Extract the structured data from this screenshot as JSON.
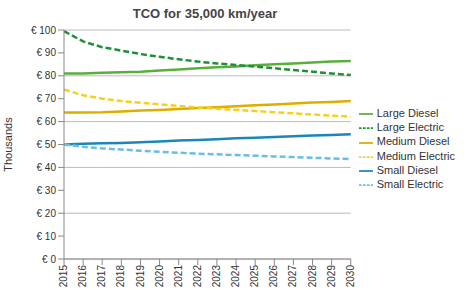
{
  "chart_data": {
    "type": "line",
    "title": "TCO for 35,000 km/year",
    "y_label": "Thousands",
    "categories": [
      "2015",
      "2016",
      "2017",
      "2018",
      "2019",
      "2020",
      "2021",
      "2022",
      "2023",
      "2024",
      "2025",
      "2026",
      "2027",
      "2028",
      "2029",
      "2030"
    ],
    "series": [
      {
        "name": "Small Diesel",
        "color": "#1b86b8",
        "line_style": "solid",
        "values": [
          50,
          50.3,
          50.5,
          50.7,
          51,
          51.3,
          51.7,
          52,
          52.3,
          52.7,
          53,
          53.3,
          53.6,
          53.9,
          54.2,
          54.5
        ]
      },
      {
        "name": "Small Electric",
        "color": "#6bbde3",
        "line_style": "dashed",
        "values": [
          50,
          49,
          48.3,
          47.8,
          47.3,
          46.8,
          46.4,
          46,
          45.7,
          45.4,
          45.1,
          44.8,
          44.5,
          44.2,
          43.9,
          43.6
        ]
      },
      {
        "name": "Medium Diesel",
        "color": "#dcae00",
        "line_style": "solid",
        "values": [
          64,
          64,
          64.1,
          64.4,
          64.8,
          65.1,
          65.5,
          65.9,
          66.3,
          66.7,
          67.1,
          67.5,
          67.9,
          68.3,
          68.6,
          69
        ]
      },
      {
        "name": "Medium Electric",
        "color": "#f5d020",
        "line_style": "dashed",
        "values": [
          74,
          71.5,
          70,
          69,
          68.2,
          67.5,
          66.8,
          66.2,
          65.6,
          65.1,
          64.6,
          64.1,
          63.6,
          63.1,
          62.6,
          62.2
        ]
      },
      {
        "name": "Large Diesel",
        "color": "#5aae3c",
        "line_style": "solid",
        "values": [
          81,
          81,
          81.3,
          81.5,
          81.8,
          82.3,
          82.8,
          83.3,
          83.7,
          84.1,
          84.6,
          85,
          85.4,
          85.8,
          86.2,
          86.5
        ]
      },
      {
        "name": "Large Electric",
        "color": "#1f8f3a",
        "line_style": "dashed",
        "values": [
          99.5,
          95,
          92.5,
          91,
          89.5,
          88.3,
          87.2,
          86.2,
          85.4,
          84.7,
          84,
          83.3,
          82.5,
          81.8,
          81,
          80.3
        ]
      }
    ],
    "ylim": [
      0,
      100
    ],
    "yticks": [
      {
        "value": 0,
        "label": "€ 0"
      },
      {
        "value": 10,
        "label": "€ 10"
      },
      {
        "value": 20,
        "label": "€ 20"
      },
      {
        "value": 30,
        "label": "€ 30"
      },
      {
        "value": 40,
        "label": "€ 40"
      },
      {
        "value": 50,
        "label": "€ 50"
      },
      {
        "value": 60,
        "label": "€ 60"
      },
      {
        "value": 70,
        "label": "€ 70"
      },
      {
        "value": 80,
        "label": "€ 80"
      },
      {
        "value": 90,
        "label": "€ 90"
      },
      {
        "value": 100,
        "label": "€ 100"
      }
    ],
    "grid": true,
    "legend": "right"
  }
}
